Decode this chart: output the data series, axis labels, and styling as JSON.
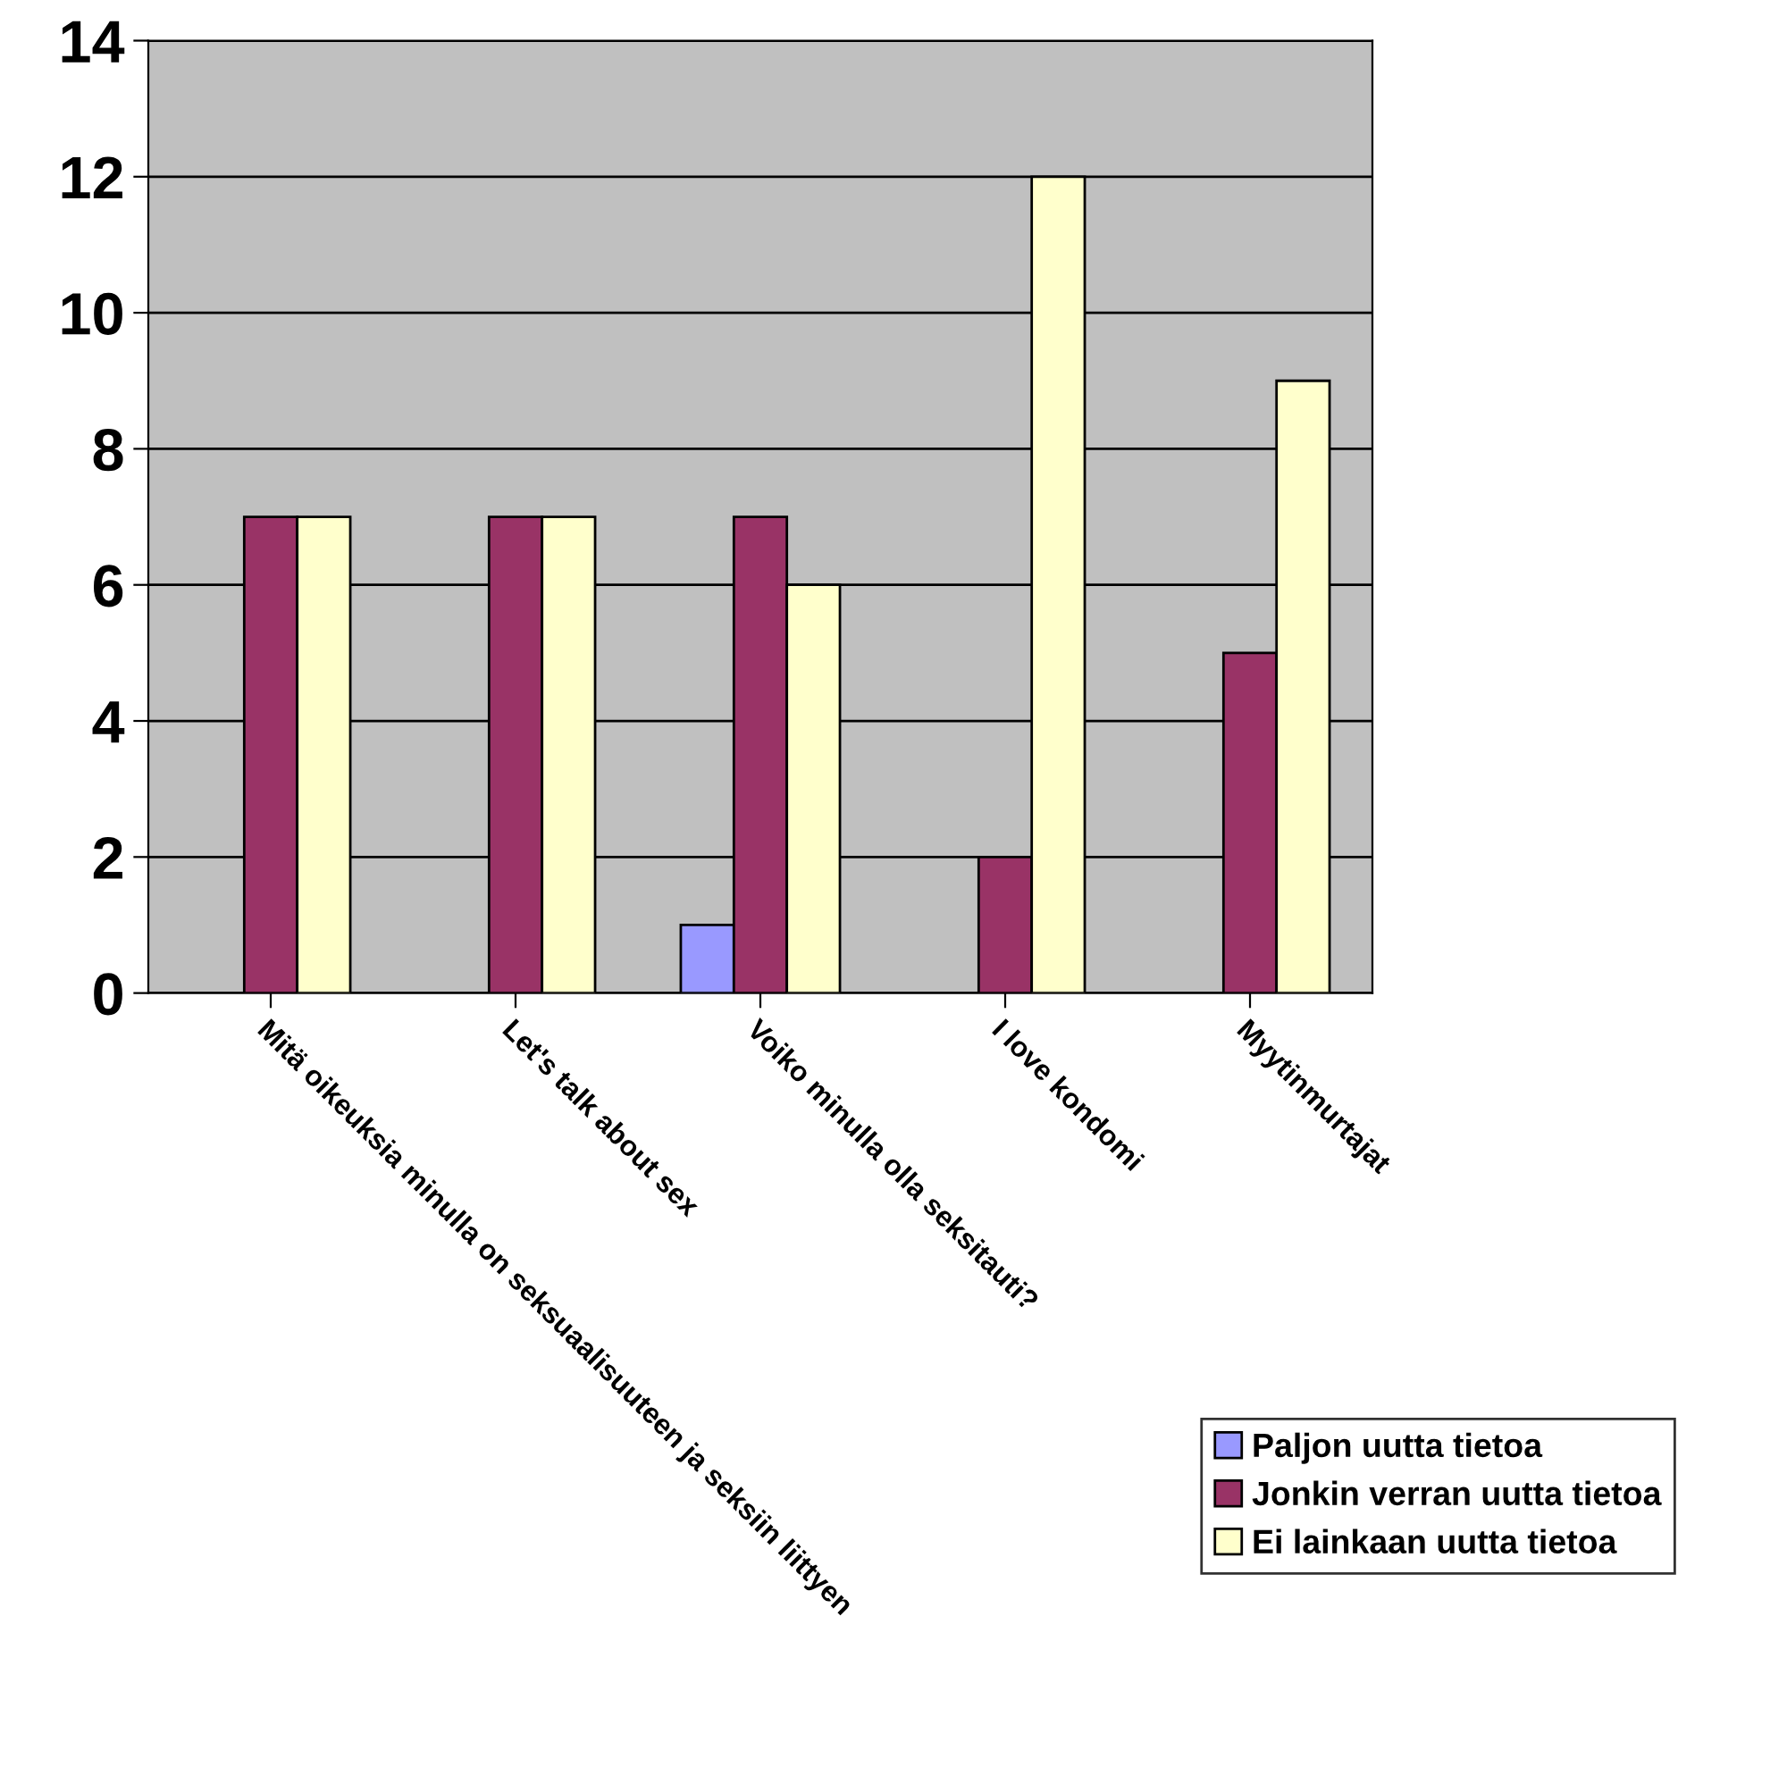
{
  "chart_data": {
    "type": "bar",
    "categories": [
      "Mitä oikeuksia minulla on seksuaalisuuteen ja seksiin liittyen",
      "Let's talk about sex",
      "Voiko minulla olla seksitauti?",
      "I love kondomi",
      "Myytinmurtajat"
    ],
    "series": [
      {
        "name": "Paljon uutta tietoa",
        "color": "#9999ff",
        "values": [
          null,
          null,
          1,
          null,
          null
        ]
      },
      {
        "name": "Jonkin verran uutta tietoa",
        "color": "#993366",
        "values": [
          7,
          7,
          7,
          2,
          5
        ]
      },
      {
        "name": "Ei lainkaan uutta tietoa",
        "color": "#ffffcc",
        "values": [
          7,
          7,
          6,
          12,
          9
        ]
      }
    ],
    "ylim": [
      0,
      14
    ],
    "yticks": [
      0,
      2,
      4,
      6,
      8,
      10,
      12,
      14
    ],
    "grid": "y",
    "legend": "bottom right"
  }
}
